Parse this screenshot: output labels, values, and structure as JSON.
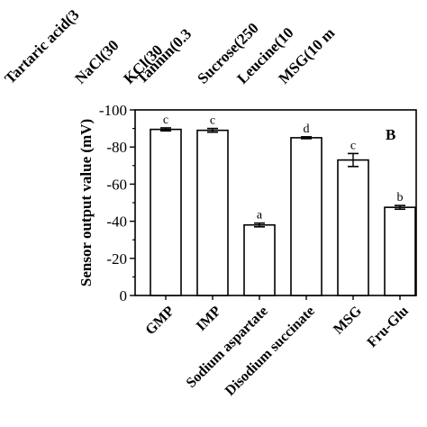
{
  "chart_data": {
    "type": "bar",
    "top_labels": [
      "Tartaric acid(3",
      "NaCl(30",
      "KCl(30",
      "Tannin(0.3",
      "Sucrose(250",
      "Leucine(10",
      "MSG(10 m"
    ],
    "panel_label": "B",
    "ylabel": "Sensor output value (mV)",
    "xlabel": "",
    "ylim": [
      -100,
      0
    ],
    "y_ticks": [
      "-100",
      "-80",
      "-60",
      "-40",
      "-20",
      "0"
    ],
    "y_tick_values": [
      -100,
      -80,
      -60,
      -40,
      -20,
      0
    ],
    "categories": [
      "GMP",
      "IMP",
      "Sodium aspartate",
      "Disodium succinate",
      "MSG",
      "Fru-Glu"
    ],
    "values": [
      -89.5,
      -89.0,
      -38.0,
      -85.0,
      -73.0,
      -47.5
    ],
    "errors": [
      0.8,
      1.0,
      1.0,
      0.5,
      3.5,
      1.0
    ],
    "significance": [
      "c",
      "c",
      "a",
      "d",
      "c",
      "b"
    ],
    "bar_fill": "#ffffff",
    "bar_stroke": "#000000",
    "grid": false
  }
}
